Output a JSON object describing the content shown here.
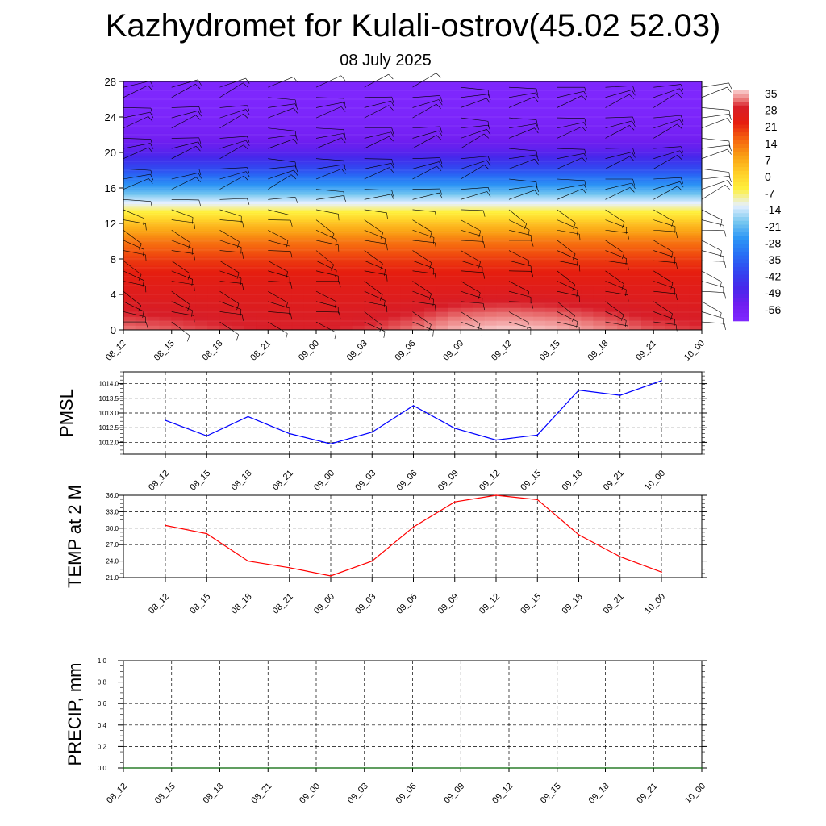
{
  "header": {
    "title": "Kazhydromet for Kulali-ostrov(45.02 52.03)",
    "subtitle": "08 July 2025"
  },
  "chart_data": [
    {
      "type": "heatmap",
      "title": "",
      "xlabel": "",
      "ylabel": "",
      "x": [
        "08_12",
        "08_15",
        "08_18",
        "08_21",
        "09_00",
        "09_03",
        "09_06",
        "09_09",
        "09_12",
        "09_15",
        "09_18",
        "09_21",
        "10_00"
      ],
      "y_ticks": [
        0,
        4,
        8,
        12,
        16,
        20,
        24,
        28
      ],
      "ylim": [
        0,
        28
      ],
      "colorbar_labels": [
        "35",
        "28",
        "21",
        "14",
        "7",
        "0",
        "-7",
        "-14",
        "-21",
        "-28",
        "-35",
        "-42",
        "-49",
        "-56"
      ],
      "levels": [
        0,
        2,
        4,
        6,
        8,
        10,
        12,
        14,
        16,
        18,
        20,
        22,
        24,
        26,
        28
      ],
      "values_at_levels": [
        31,
        28,
        25,
        22,
        18,
        12,
        2,
        -12,
        -26,
        -40,
        -52,
        -58,
        -61,
        -62,
        -62
      ],
      "surface_values_by_time": [
        31,
        30,
        29,
        28,
        28,
        29,
        31,
        34,
        35,
        34,
        32,
        30,
        29
      ],
      "wind_barbs": true
    },
    {
      "type": "line",
      "ylabel": "PMSL",
      "x": [
        "08_12",
        "08_15",
        "08_18",
        "08_21",
        "09_00",
        "09_03",
        "09_06",
        "09_09",
        "09_12",
        "09_15",
        "09_18",
        "09_21",
        "10_00"
      ],
      "y_ticks": [
        "1012.0",
        "1012.5",
        "1013.0",
        "1013.5",
        "1014.0"
      ],
      "ylim": [
        1011.6,
        1014.4
      ],
      "values": [
        1012.75,
        1012.22,
        1012.88,
        1012.3,
        1011.95,
        1012.35,
        1013.25,
        1012.48,
        1012.08,
        1012.25,
        1013.78,
        1013.6,
        1014.1
      ],
      "color": "#0000ff",
      "grid": true
    },
    {
      "type": "line",
      "ylabel": "TEMP at 2 M",
      "x": [
        "08_12",
        "08_15",
        "08_18",
        "08_21",
        "09_00",
        "09_03",
        "09_06",
        "09_09",
        "09_12",
        "09_15",
        "09_18",
        "09_21",
        "10_00"
      ],
      "y_ticks": [
        "21.0",
        "24.0",
        "27.0",
        "30.0",
        "33.0",
        "36.0"
      ],
      "ylim": [
        21.0,
        36.0
      ],
      "values": [
        30.5,
        29.0,
        24.0,
        22.8,
        21.3,
        24.0,
        30.2,
        34.8,
        36.0,
        35.2,
        28.8,
        24.8,
        22.0
      ],
      "color": "#ff0000",
      "grid": true
    },
    {
      "type": "line",
      "ylabel": "PRECIP, mm",
      "x": [
        "08_12",
        "08_15",
        "08_18",
        "08_21",
        "09_00",
        "09_03",
        "09_06",
        "09_09",
        "09_12",
        "09_15",
        "09_18",
        "09_21",
        "10_00"
      ],
      "y_ticks": [
        "0.0",
        "0.2",
        "0.4",
        "0.6",
        "0.8",
        "1.0"
      ],
      "ylim": [
        0.0,
        1.0
      ],
      "values": [
        0,
        0,
        0,
        0,
        0,
        0,
        0,
        0,
        0,
        0,
        0,
        0,
        0
      ],
      "color": "#006400",
      "grid": true
    }
  ]
}
